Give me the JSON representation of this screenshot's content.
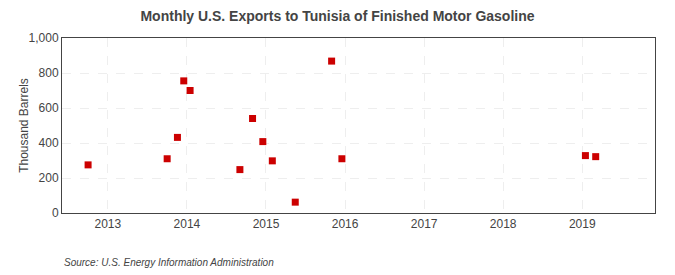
{
  "chart_data": {
    "type": "scatter",
    "title": "Monthly U.S. Exports to Tunisia of Finished Motor Gasoline",
    "ylabel": "Thousand Barrels",
    "annotations": [
      "Source: U.S. Energy Information Administration"
    ],
    "x": [
      2012.75,
      2013.75,
      2013.88,
      2013.96,
      2014.04,
      2014.67,
      2014.83,
      2014.96,
      2015.08,
      2015.37,
      2015.83,
      2015.96,
      2019.04,
      2019.17
    ],
    "values": [
      275,
      310,
      432,
      755,
      700,
      248,
      540,
      408,
      298,
      62,
      868,
      310,
      328,
      322
    ],
    "color": "#cc0000",
    "marker": "square",
    "xlim": [
      2012.42,
      2019.92
    ],
    "xticks": [
      2013,
      2014,
      2015,
      2016,
      2017,
      2018,
      2019
    ],
    "ylim": [
      0,
      1000
    ],
    "yticks": [
      0,
      200,
      400,
      600,
      800,
      {
        "value": 1000,
        "label": "1,000"
      }
    ],
    "grid": true
  }
}
